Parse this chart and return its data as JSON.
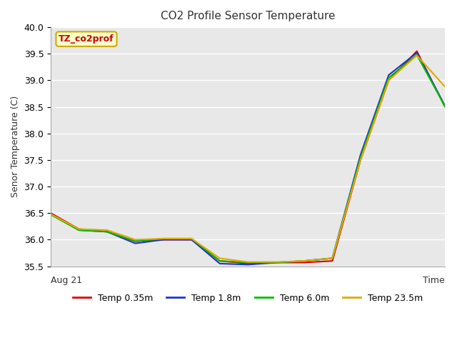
{
  "title": "CO2 Profile Sensor Temperature",
  "ylabel": "Senor Temperature (C)",
  "xlabel": "Time",
  "x_start_label": "Aug 21",
  "ylim": [
    35.5,
    40.0
  ],
  "yticks": [
    35.5,
    36.0,
    36.5,
    37.0,
    37.5,
    38.0,
    38.5,
    39.0,
    39.5,
    40.0
  ],
  "annotation_label": "TZ_co2prof",
  "annotation_color": "#cc0000",
  "annotation_bg": "#ffffcc",
  "annotation_border": "#ccaa00",
  "series": {
    "Temp 0.35m": {
      "color": "#dd0000",
      "x": [
        0,
        1,
        2,
        3,
        4,
        5,
        6,
        7,
        8,
        9,
        10,
        11,
        12,
        13,
        14
      ],
      "y": [
        36.5,
        36.2,
        36.15,
        35.97,
        36.0,
        36.0,
        35.6,
        35.55,
        35.57,
        35.57,
        35.6,
        37.5,
        39.0,
        39.55,
        38.5
      ]
    },
    "Temp 1.8m": {
      "color": "#2233cc",
      "x": [
        0,
        1,
        2,
        3,
        4,
        5,
        6,
        7,
        8,
        9,
        10,
        11,
        12,
        13,
        14
      ],
      "y": [
        36.48,
        36.18,
        36.15,
        35.93,
        36.0,
        36.0,
        35.55,
        35.53,
        35.57,
        35.6,
        35.65,
        37.6,
        39.1,
        39.52,
        38.52
      ]
    },
    "Temp 6.0m": {
      "color": "#00bb00",
      "x": [
        0,
        1,
        2,
        3,
        4,
        5,
        6,
        7,
        8,
        9,
        10,
        11,
        12,
        13,
        14
      ],
      "y": [
        36.47,
        36.18,
        36.15,
        35.97,
        36.02,
        36.02,
        35.6,
        35.57,
        35.57,
        35.6,
        35.65,
        37.55,
        39.05,
        39.48,
        38.51
      ]
    },
    "Temp 23.5m": {
      "color": "#ddaa00",
      "x": [
        0,
        1,
        2,
        3,
        4,
        5,
        6,
        7,
        8,
        9,
        10,
        11,
        12,
        13,
        14
      ],
      "y": [
        36.48,
        36.2,
        36.18,
        36.0,
        36.02,
        36.02,
        35.65,
        35.58,
        35.58,
        35.6,
        35.65,
        37.5,
        39.0,
        39.47,
        38.88
      ]
    }
  },
  "fig_bg_color": "#ffffff",
  "plot_bg_color": "#e8e8e8",
  "grid_color": "#ffffff",
  "legend_items": [
    "Temp 0.35m",
    "Temp 1.8m",
    "Temp 6.0m",
    "Temp 23.5m"
  ],
  "legend_colors": [
    "#dd0000",
    "#2233cc",
    "#00bb00",
    "#ddaa00"
  ]
}
